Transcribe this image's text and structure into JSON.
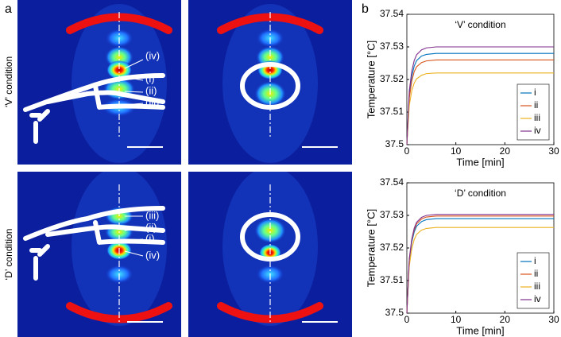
{
  "panel_labels": [
    "a",
    "b"
  ],
  "panel_a": {
    "row_labels": [
      "‘V’ condition",
      "‘D’ condition"
    ],
    "markers_v": [
      "(iv)",
      "(i)",
      "(ii)",
      "(iii)"
    ],
    "markers_d": [
      "(iii)",
      "(ii)",
      "(i)",
      "(iv)"
    ]
  },
  "chart_data": [
    {
      "type": "line",
      "title": "‘V’ condition",
      "xlabel": "Time [min]",
      "ylabel": "Temperature [°C]",
      "x": [
        0,
        0.5,
        1,
        1.5,
        2,
        3,
        4,
        6,
        8,
        10,
        15,
        20,
        25,
        30
      ],
      "series": [
        {
          "name": "i",
          "color": "#0072bd",
          "values": [
            37.5,
            37.5154,
            37.521,
            37.5241,
            37.5258,
            37.5272,
            37.5277,
            37.528,
            37.528,
            37.528,
            37.528,
            37.528,
            37.528,
            37.528
          ]
        },
        {
          "name": "ii",
          "color": "#d95319",
          "values": [
            37.5,
            37.5143,
            37.5195,
            37.5224,
            37.5239,
            37.5252,
            37.5257,
            37.526,
            37.526,
            37.526,
            37.526,
            37.526,
            37.526,
            37.526
          ]
        },
        {
          "name": "iii",
          "color": "#edb120",
          "values": [
            37.5,
            37.5121,
            37.5165,
            37.5189,
            37.5202,
            37.5213,
            37.5218,
            37.522,
            37.522,
            37.522,
            37.522,
            37.522,
            37.522,
            37.522
          ]
        },
        {
          "name": "iv",
          "color": "#7e2f8e",
          "values": [
            37.5,
            37.5165,
            37.5225,
            37.5258,
            37.5276,
            37.5291,
            37.5297,
            37.53,
            37.53,
            37.53,
            37.53,
            37.53,
            37.53,
            37.53
          ]
        }
      ],
      "xlim": [
        0,
        30
      ],
      "ylim": [
        37.5,
        37.54
      ],
      "xticks": [
        0,
        10,
        20,
        30
      ],
      "yticks": [
        37.5,
        37.51,
        37.52,
        37.53,
        37.54
      ],
      "legend": "lower right"
    },
    {
      "type": "line",
      "title": "‘D’ condition",
      "xlabel": "Time [min]",
      "ylabel": "Temperature [°C]",
      "x": [
        0,
        0.5,
        1,
        1.5,
        2,
        3,
        4,
        6,
        8,
        10,
        15,
        20,
        25,
        30
      ],
      "series": [
        {
          "name": "i",
          "color": "#0072bd",
          "values": [
            37.5,
            37.516,
            37.5218,
            37.5249,
            37.5267,
            37.5281,
            37.5287,
            37.529,
            37.529,
            37.529,
            37.529,
            37.529,
            37.529,
            37.529
          ]
        },
        {
          "name": "ii",
          "color": "#d95319",
          "values": [
            37.5,
            37.5164,
            37.5224,
            37.5256,
            37.5274,
            37.5289,
            37.5295,
            37.5298,
            37.5298,
            37.5298,
            37.5298,
            37.5298,
            37.5298,
            37.5298
          ]
        },
        {
          "name": "iii",
          "color": "#edb120",
          "values": [
            37.5,
            37.5145,
            37.5197,
            37.5226,
            37.5242,
            37.5255,
            37.526,
            37.5263,
            37.5263,
            37.5263,
            37.5263,
            37.5263,
            37.5263,
            37.5263
          ]
        },
        {
          "name": "iv",
          "color": "#7e2f8e",
          "values": [
            37.5,
            37.5167,
            37.5227,
            37.5261,
            37.5279,
            37.5294,
            37.53,
            37.5303,
            37.5303,
            37.5303,
            37.5303,
            37.5303,
            37.5303,
            37.5303
          ]
        }
      ],
      "xlim": [
        0,
        30
      ],
      "ylim": [
        37.5,
        37.54
      ],
      "xticks": [
        0,
        10,
        20,
        30
      ],
      "yticks": [
        37.5,
        37.51,
        37.52,
        37.53,
        37.54
      ],
      "legend": "lower right"
    }
  ]
}
